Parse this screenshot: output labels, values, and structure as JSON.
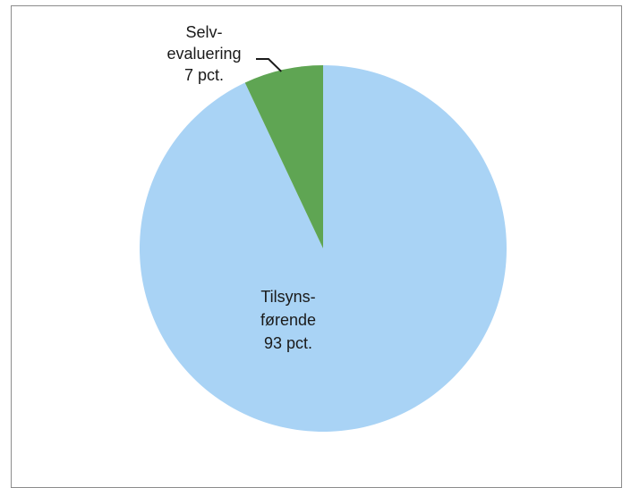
{
  "chart_data": {
    "type": "pie",
    "title": "",
    "slices": [
      {
        "name": "Tilsynsførende",
        "value": 93,
        "color": "#a9d3f5",
        "label_lines": [
          "Tilsyns-",
          "førende",
          "93 pct."
        ]
      },
      {
        "name": "Selvevaluering",
        "value": 7,
        "color": "#5fa553",
        "label_lines": [
          "Selv-",
          "evaluering",
          "7 pct."
        ]
      }
    ],
    "start_angle_deg": 0,
    "direction": "clockwise",
    "legend": "none"
  }
}
